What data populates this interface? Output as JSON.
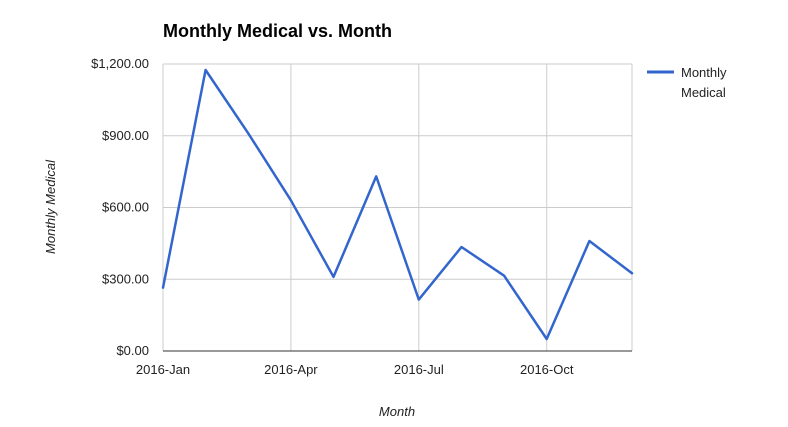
{
  "chart_data": {
    "type": "line",
    "title": "Monthly Medical vs. Month",
    "xlabel": "Month",
    "ylabel": "Monthly Medical",
    "x": [
      "2016-01",
      "2016-02",
      "2016-03",
      "2016-04",
      "2016-05",
      "2016-06",
      "2016-07",
      "2016-08",
      "2016-09",
      "2016-10",
      "2016-11",
      "2016-12"
    ],
    "x_ticks": [
      "2016-Jan",
      "2016-Apr",
      "2016-Jul",
      "2016-Oct"
    ],
    "series": [
      {
        "name": "Monthly Medical",
        "legend_lines": [
          "Monthly",
          "Medical"
        ],
        "color": "#3366cc",
        "values": [
          265,
          1175,
          910,
          630,
          310,
          730,
          215,
          435,
          315,
          50,
          460,
          325
        ]
      }
    ],
    "y_ticks": [
      0,
      300,
      600,
      900,
      1200
    ],
    "y_tick_labels": [
      "$0.00",
      "$300.00",
      "$600.00",
      "$900.00",
      "$1,200.00"
    ],
    "ylim": [
      0,
      1200
    ],
    "grid": true,
    "legend": "right"
  }
}
